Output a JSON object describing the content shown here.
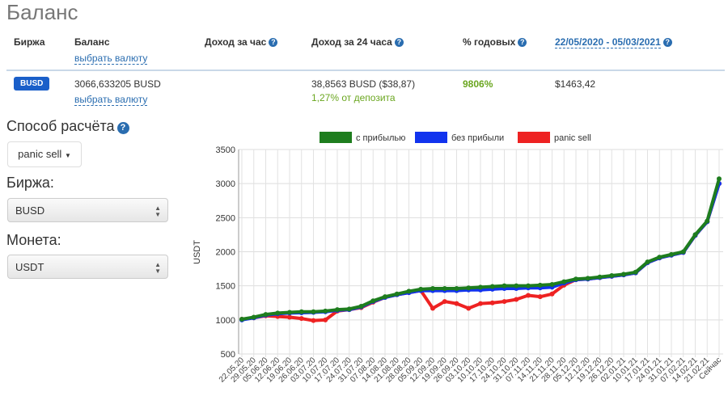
{
  "title": "Баланс",
  "table": {
    "headers": {
      "exchange": "Биржа",
      "balance": "Баланс",
      "choose_currency": "выбрать валюту",
      "hour": "Доход за час",
      "day": "Доход за 24 часа",
      "annual": "% годовых",
      "range": "22/05/2020 - 05/03/2021"
    },
    "row": {
      "exchange": "BUSD",
      "balance": "3066,633205 BUSD",
      "choose_currency": "выбрать валюту",
      "day": "38,8563 BUSD ($38,87)",
      "day_pct": "1,27% от депозита",
      "annual": "9806%",
      "range_profit": "$1463,42"
    }
  },
  "controls": {
    "method_label": "Способ расчёта",
    "method_value": "panic sell",
    "exchange_label": "Биржа:",
    "exchange_value": "BUSD",
    "coin_label": "Монета:",
    "coin_value": "USDT"
  },
  "chart_data": {
    "type": "line",
    "ylabel": "USDT",
    "ylim": [
      500,
      3500
    ],
    "yticks": [
      500,
      1000,
      1500,
      2000,
      2500,
      3000,
      3500
    ],
    "grid": true,
    "legend": "top",
    "categories": [
      "22.05.20",
      "29.05.20",
      "05.06.20",
      "12.06.20",
      "19.06.20",
      "26.06.20",
      "03.07.20",
      "10.07.20",
      "17.07.20",
      "24.07.20",
      "31.07.20",
      "07.08.20",
      "14.08.20",
      "21.08.20",
      "28.08.20",
      "05.09.20",
      "12.09.20",
      "19.09.20",
      "26.09.20",
      "03.10.20",
      "10.10.20",
      "17.10.20",
      "24.10.20",
      "31.10.20",
      "07.11.20",
      "14.11.20",
      "21.11.20",
      "28.11.20",
      "05.12.20",
      "12.12.20",
      "19.12.20",
      "26.12.20",
      "02.01.21",
      "10.01.21",
      "17.01.21",
      "24.01.21",
      "31.01.21",
      "07.02.21",
      "14.02.21",
      "21.02.21",
      "Сейчас"
    ],
    "series": [
      {
        "name": "panic sell",
        "color": "#ee2222",
        "values": [
          1010,
          1030,
          1060,
          1050,
          1040,
          1020,
          990,
          1000,
          1130,
          1150,
          1180,
          1260,
          1330,
          1370,
          1400,
          1430,
          1170,
          1270,
          1240,
          1170,
          1240,
          1250,
          1270,
          1300,
          1360,
          1340,
          1380,
          1510,
          1590,
          1600,
          1620,
          1640,
          1660,
          1690,
          1840,
          1910,
          1950,
          1990,
          2240,
          2440,
          3000
        ]
      },
      {
        "name": "без прибыли",
        "color": "#1133ee",
        "values": [
          1000,
          1030,
          1070,
          1090,
          1100,
          1105,
          1110,
          1120,
          1140,
          1150,
          1190,
          1270,
          1330,
          1370,
          1400,
          1430,
          1430,
          1430,
          1430,
          1440,
          1440,
          1450,
          1460,
          1460,
          1470,
          1470,
          1480,
          1540,
          1590,
          1600,
          1620,
          1640,
          1660,
          1690,
          1840,
          1910,
          1950,
          1990,
          2240,
          2440,
          3000
        ]
      },
      {
        "name": "с прибылью",
        "color": "#1e7d1e",
        "values": [
          1010,
          1040,
          1080,
          1100,
          1110,
          1120,
          1120,
          1130,
          1150,
          1160,
          1200,
          1280,
          1340,
          1380,
          1420,
          1450,
          1460,
          1460,
          1460,
          1470,
          1480,
          1490,
          1500,
          1500,
          1500,
          1510,
          1520,
          1560,
          1600,
          1610,
          1630,
          1650,
          1670,
          1700,
          1850,
          1920,
          1960,
          2000,
          2250,
          2450,
          3070
        ]
      }
    ]
  }
}
